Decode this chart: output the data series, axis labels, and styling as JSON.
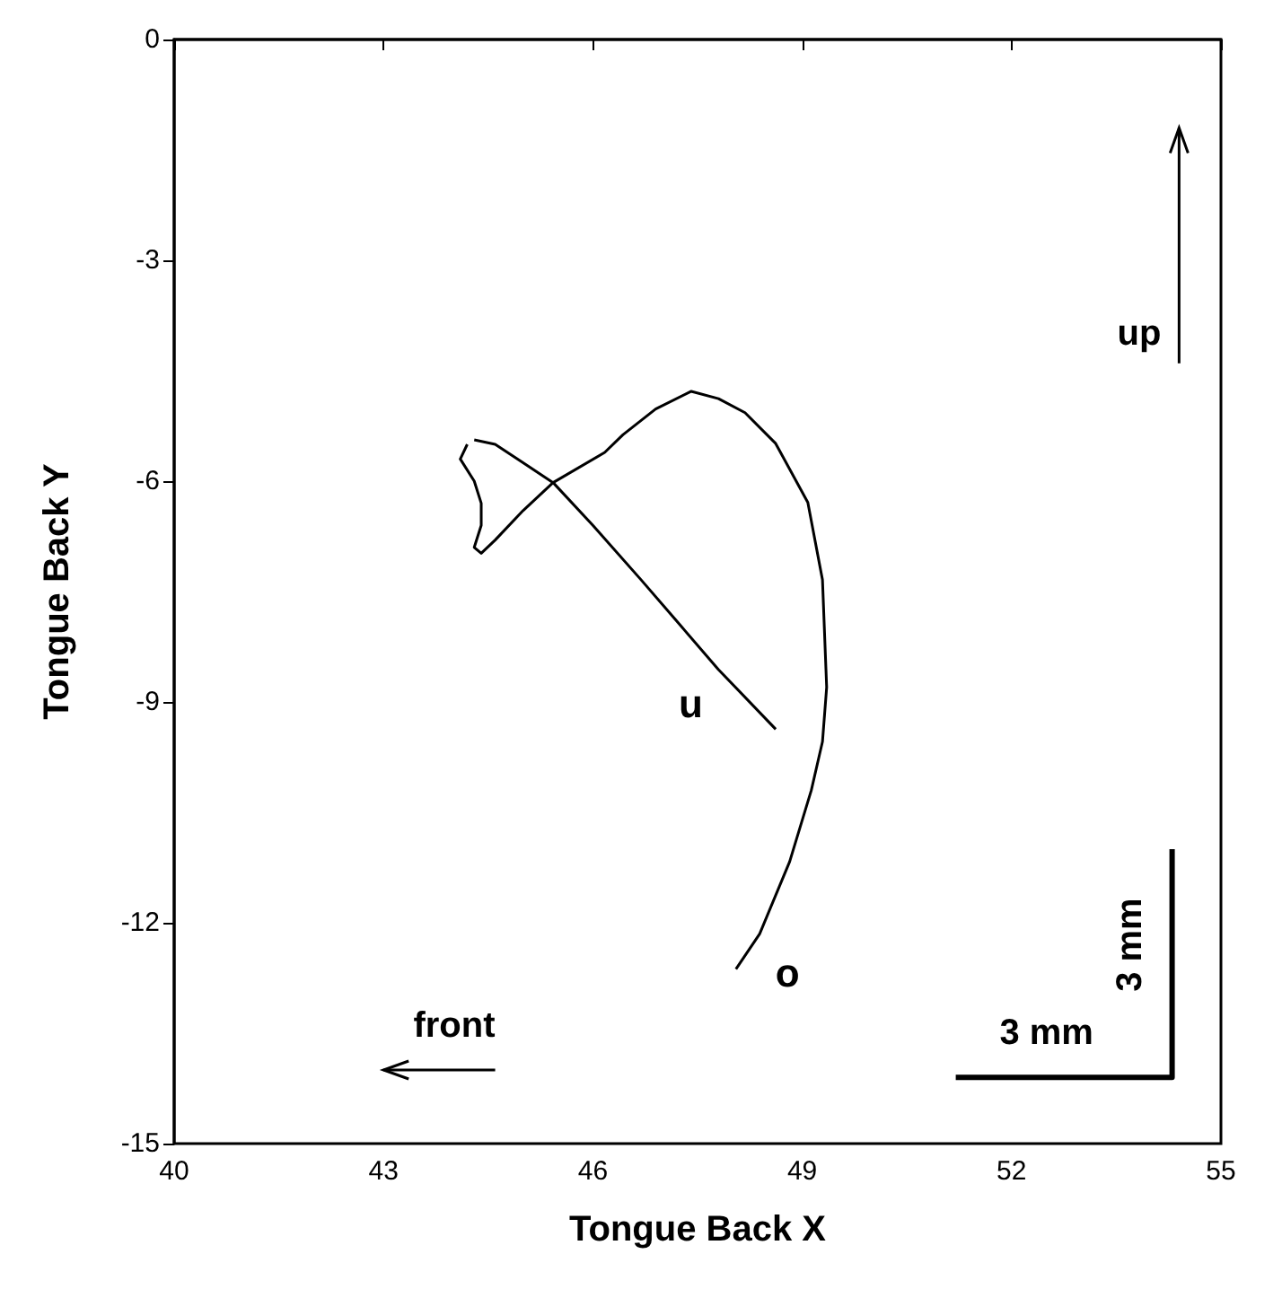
{
  "chart_data": {
    "type": "line",
    "xlabel": "Tongue Back X",
    "ylabel": "Tongue Back Y",
    "xlim": [
      40,
      55
    ],
    "xticks": [
      40,
      43,
      46,
      49,
      52,
      55
    ],
    "ylim": [
      -15,
      0
    ],
    "yticks": [
      -15,
      -12,
      -9,
      -6,
      -3,
      0
    ],
    "grid": false,
    "legend": false,
    "series": [
      {
        "name": "u",
        "color": "#000000",
        "x": [
          44.3,
          44.6,
          45.0,
          45.43,
          46.0,
          46.69,
          47.2,
          47.8,
          48.62
        ],
        "values": [
          -5.44,
          -5.5,
          -5.75,
          -6.02,
          -6.6,
          -7.34,
          -7.9,
          -8.56,
          -9.37
        ]
      },
      {
        "name": "o",
        "color": "#000000",
        "x": [
          44.2,
          44.1,
          44.3,
          44.4,
          44.4,
          44.3,
          44.4,
          44.6,
          45.0,
          45.43,
          46.17,
          46.43,
          46.9,
          47.41,
          47.8,
          48.18,
          48.62,
          49.08,
          49.29,
          49.34,
          49.35,
          49.29,
          49.13,
          48.82,
          48.39,
          48.05
        ],
        "values": [
          -5.5,
          -5.7,
          -6.0,
          -6.3,
          -6.6,
          -6.9,
          -6.98,
          -6.8,
          -6.4,
          -6.02,
          -5.61,
          -5.37,
          -5.02,
          -4.78,
          -4.88,
          -5.07,
          -5.49,
          -6.29,
          -7.34,
          -8.56,
          -8.8,
          -9.54,
          -10.2,
          -11.17,
          -12.15,
          -12.63
        ]
      },
      {
        "color": "#000000",
        "x": [
          51.2,
          54.3,
          54.3
        ],
        "values": [
          -14.1,
          -14.1,
          -11.0
        ]
      }
    ],
    "annotations": [
      "up",
      "front",
      "3 mm",
      "3 mm"
    ]
  }
}
